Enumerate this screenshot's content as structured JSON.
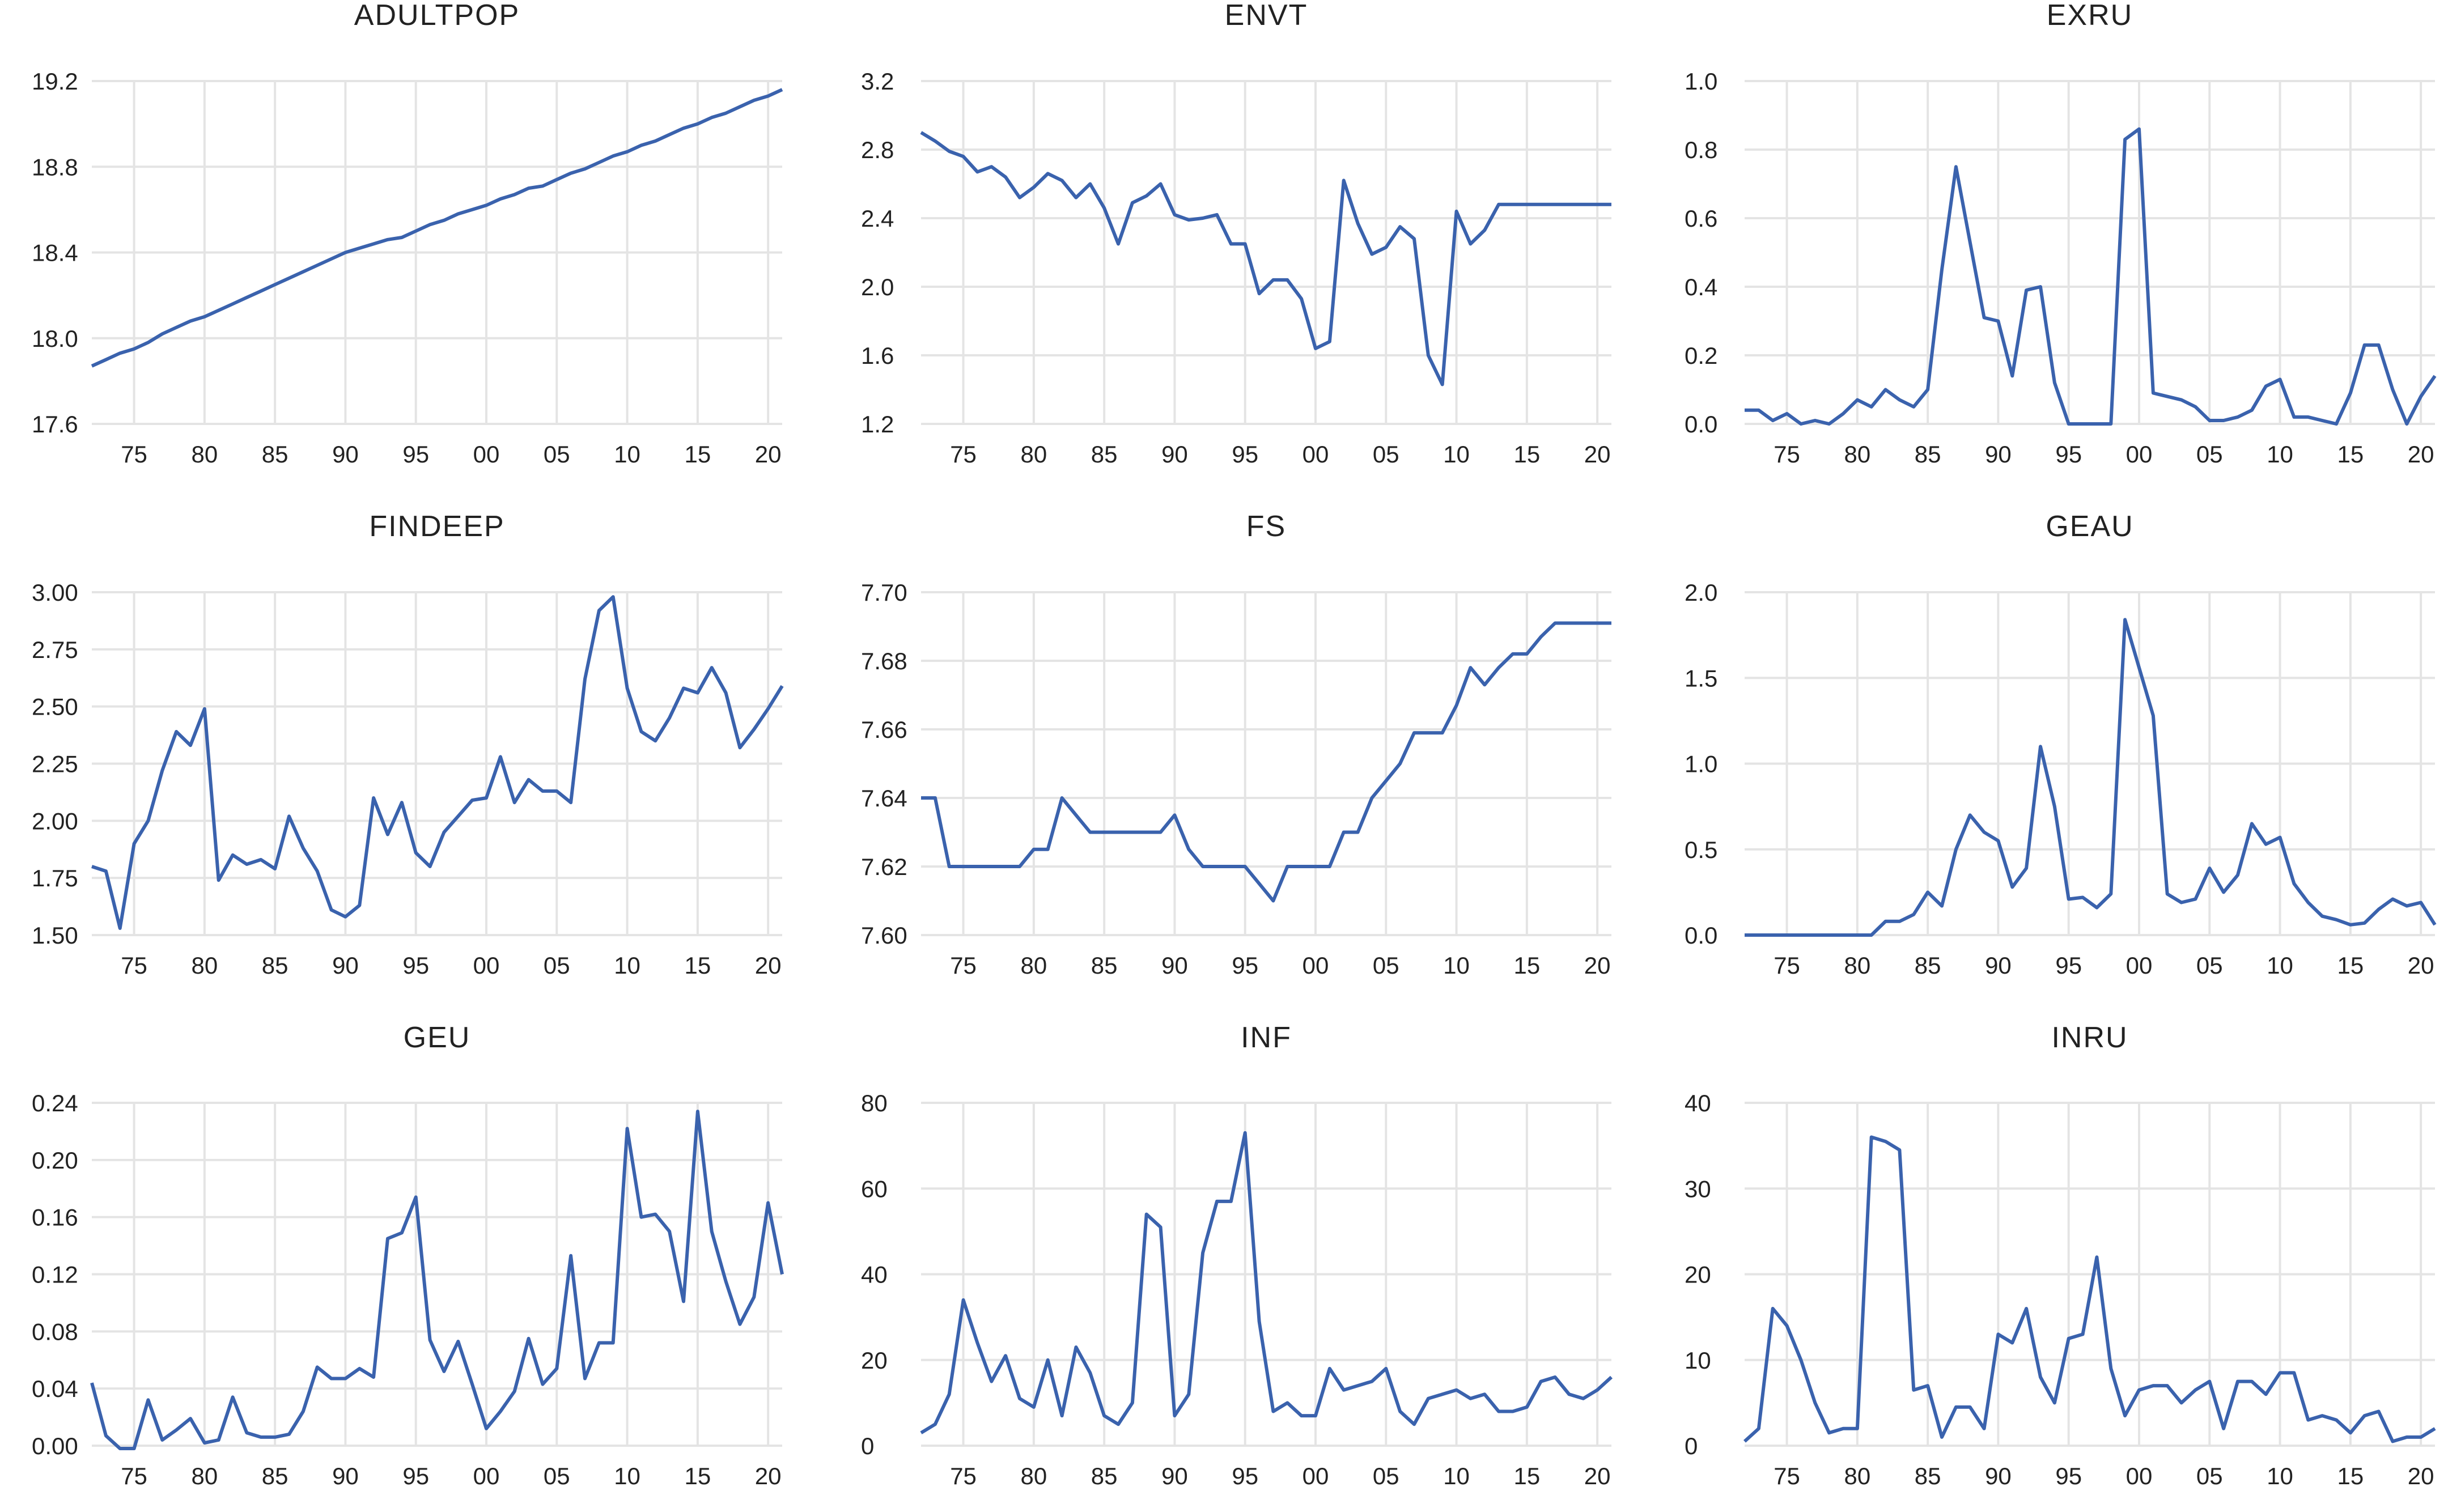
{
  "colors": {
    "line": "#3a62ad",
    "grid": "#e4e4e4",
    "text": "#222222"
  },
  "chart_data": [
    {
      "type": "line",
      "title": "ADULTPOP",
      "ylim": [
        17.6,
        19.2
      ],
      "yticks": [
        "17.6",
        "18.0",
        "18.4",
        "18.8",
        "19.2"
      ],
      "xticks": [
        "75",
        "80",
        "85",
        "90",
        "95",
        "00",
        "05",
        "10",
        "15",
        "20"
      ],
      "x": [
        1972,
        1973,
        1974,
        1975,
        1976,
        1977,
        1978,
        1979,
        1980,
        1981,
        1982,
        1983,
        1984,
        1985,
        1986,
        1987,
        1988,
        1989,
        1990,
        1991,
        1992,
        1993,
        1994,
        1995,
        1996,
        1997,
        1998,
        1999,
        2000,
        2001,
        2002,
        2003,
        2004,
        2005,
        2006,
        2007,
        2008,
        2009,
        2010,
        2011,
        2012,
        2013,
        2014,
        2015,
        2016,
        2017,
        2018,
        2019,
        2020,
        2021
      ],
      "values": [
        17.87,
        17.9,
        17.93,
        17.95,
        17.98,
        18.02,
        18.05,
        18.08,
        18.1,
        18.13,
        18.16,
        18.19,
        18.22,
        18.25,
        18.28,
        18.31,
        18.34,
        18.37,
        18.4,
        18.42,
        18.44,
        18.46,
        18.47,
        18.5,
        18.53,
        18.55,
        18.58,
        18.6,
        18.62,
        18.65,
        18.67,
        18.7,
        18.71,
        18.74,
        18.77,
        18.79,
        18.82,
        18.85,
        18.87,
        18.9,
        18.92,
        18.95,
        18.98,
        19.0,
        19.03,
        19.05,
        19.08,
        19.11,
        19.13,
        19.16
      ]
    },
    {
      "type": "line",
      "title": "ENVT",
      "ylim": [
        1.2,
        3.2
      ],
      "yticks": [
        "1.2",
        "1.6",
        "2.0",
        "2.4",
        "2.8",
        "3.2"
      ],
      "xticks": [
        "75",
        "80",
        "85",
        "90",
        "95",
        "00",
        "05",
        "10",
        "15",
        "20"
      ],
      "x": [
        1972,
        1973,
        1974,
        1975,
        1976,
        1977,
        1978,
        1979,
        1980,
        1981,
        1982,
        1983,
        1984,
        1985,
        1986,
        1987,
        1988,
        1989,
        1990,
        1991,
        1992,
        1993,
        1994,
        1995,
        1996,
        1997,
        1998,
        1999,
        2000,
        2001,
        2002,
        2003,
        2004,
        2005,
        2006,
        2007,
        2008,
        2009,
        2010,
        2011,
        2012,
        2013,
        2014,
        2015,
        2016,
        2017,
        2018,
        2019,
        2020,
        2021
      ],
      "values": [
        2.9,
        2.85,
        2.79,
        2.76,
        2.67,
        2.7,
        2.64,
        2.52,
        2.58,
        2.66,
        2.62,
        2.52,
        2.6,
        2.46,
        2.25,
        2.49,
        2.53,
        2.6,
        2.42,
        2.39,
        2.4,
        2.42,
        2.25,
        2.25,
        1.96,
        2.04,
        2.04,
        1.93,
        1.64,
        1.68,
        2.62,
        2.37,
        2.19,
        2.23,
        2.35,
        2.28,
        1.6,
        1.43,
        2.44,
        2.25,
        2.33,
        2.48,
        2.48,
        2.48,
        2.48,
        2.48,
        2.48,
        2.48,
        2.48,
        2.48
      ]
    },
    {
      "type": "line",
      "title": "EXRU",
      "ylim": [
        0.0,
        1.0
      ],
      "yticks": [
        "0.0",
        "0.2",
        "0.4",
        "0.6",
        "0.8",
        "1.0"
      ],
      "xticks": [
        "75",
        "80",
        "85",
        "90",
        "95",
        "00",
        "05",
        "10",
        "15",
        "20"
      ],
      "x": [
        1972,
        1973,
        1974,
        1975,
        1976,
        1977,
        1978,
        1979,
        1980,
        1981,
        1982,
        1983,
        1984,
        1985,
        1986,
        1987,
        1988,
        1989,
        1990,
        1991,
        1992,
        1993,
        1994,
        1995,
        1996,
        1997,
        1998,
        1999,
        2000,
        2001,
        2002,
        2003,
        2004,
        2005,
        2006,
        2007,
        2008,
        2009,
        2010,
        2011,
        2012,
        2013,
        2014,
        2015,
        2016,
        2017,
        2018,
        2019,
        2020,
        2021
      ],
      "values": [
        0.04,
        0.04,
        0.01,
        0.03,
        0.0,
        0.01,
        0.0,
        0.03,
        0.07,
        0.05,
        0.1,
        0.07,
        0.05,
        0.1,
        0.45,
        0.75,
        0.53,
        0.31,
        0.3,
        0.14,
        0.39,
        0.4,
        0.12,
        0.0,
        0.0,
        0.0,
        0.0,
        0.83,
        0.86,
        0.09,
        0.08,
        0.07,
        0.05,
        0.01,
        0.01,
        0.02,
        0.04,
        0.11,
        0.13,
        0.02,
        0.02,
        0.01,
        0.0,
        0.09,
        0.23,
        0.23,
        0.1,
        0.0,
        0.08,
        0.14
      ]
    },
    {
      "type": "line",
      "title": "FINDEEP",
      "ylim": [
        1.5,
        3.0
      ],
      "yticks": [
        "1.50",
        "1.75",
        "2.00",
        "2.25",
        "2.50",
        "2.75",
        "3.00"
      ],
      "xticks": [
        "75",
        "80",
        "85",
        "90",
        "95",
        "00",
        "05",
        "10",
        "15",
        "20"
      ],
      "x": [
        1972,
        1973,
        1974,
        1975,
        1976,
        1977,
        1978,
        1979,
        1980,
        1981,
        1982,
        1983,
        1984,
        1985,
        1986,
        1987,
        1988,
        1989,
        1990,
        1991,
        1992,
        1993,
        1994,
        1995,
        1996,
        1997,
        1998,
        1999,
        2000,
        2001,
        2002,
        2003,
        2004,
        2005,
        2006,
        2007,
        2008,
        2009,
        2010,
        2011,
        2012,
        2013,
        2014,
        2015,
        2016,
        2017,
        2018,
        2019,
        2020,
        2021
      ],
      "values": [
        1.8,
        1.78,
        1.53,
        1.9,
        2.0,
        2.22,
        2.39,
        2.33,
        2.49,
        1.74,
        1.85,
        1.81,
        1.83,
        1.79,
        2.02,
        1.88,
        1.78,
        1.61,
        1.58,
        1.63,
        2.1,
        1.94,
        2.08,
        1.86,
        1.8,
        1.95,
        2.02,
        2.09,
        2.1,
        2.28,
        2.08,
        2.18,
        2.13,
        2.13,
        2.08,
        2.62,
        2.92,
        2.98,
        2.58,
        2.39,
        2.35,
        2.45,
        2.58,
        2.56,
        2.67,
        2.56,
        2.32,
        2.4,
        2.49,
        2.59
      ]
    },
    {
      "type": "line",
      "title": "FS",
      "ylim": [
        7.6,
        7.7
      ],
      "yticks": [
        "7.60",
        "7.62",
        "7.64",
        "7.66",
        "7.68",
        "7.70"
      ],
      "xticks": [
        "75",
        "80",
        "85",
        "90",
        "95",
        "00",
        "05",
        "10",
        "15",
        "20"
      ],
      "x": [
        1972,
        1973,
        1974,
        1975,
        1976,
        1977,
        1978,
        1979,
        1980,
        1981,
        1982,
        1983,
        1984,
        1985,
        1986,
        1987,
        1988,
        1989,
        1990,
        1991,
        1992,
        1993,
        1994,
        1995,
        1996,
        1997,
        1998,
        1999,
        2000,
        2001,
        2002,
        2003,
        2004,
        2005,
        2006,
        2007,
        2008,
        2009,
        2010,
        2011,
        2012,
        2013,
        2014,
        2015,
        2016,
        2017,
        2018,
        2019,
        2020,
        2021
      ],
      "values": [
        7.64,
        7.64,
        7.62,
        7.62,
        7.62,
        7.62,
        7.62,
        7.62,
        7.625,
        7.625,
        7.64,
        7.635,
        7.63,
        7.63,
        7.63,
        7.63,
        7.63,
        7.63,
        7.635,
        7.625,
        7.62,
        7.62,
        7.62,
        7.62,
        7.615,
        7.61,
        7.62,
        7.62,
        7.62,
        7.62,
        7.63,
        7.63,
        7.64,
        7.645,
        7.65,
        7.659,
        7.659,
        7.659,
        7.667,
        7.678,
        7.673,
        7.678,
        7.682,
        7.682,
        7.687,
        7.691,
        7.691,
        7.691,
        7.691,
        7.691
      ]
    },
    {
      "type": "line",
      "title": "GEAU",
      "ylim": [
        0.0,
        2.0
      ],
      "yticks": [
        "0.0",
        "0.5",
        "1.0",
        "1.5",
        "2.0"
      ],
      "xticks": [
        "75",
        "80",
        "85",
        "90",
        "95",
        "00",
        "05",
        "10",
        "15",
        "20"
      ],
      "x": [
        1972,
        1973,
        1974,
        1975,
        1976,
        1977,
        1978,
        1979,
        1980,
        1981,
        1982,
        1983,
        1984,
        1985,
        1986,
        1987,
        1988,
        1989,
        1990,
        1991,
        1992,
        1993,
        1994,
        1995,
        1996,
        1997,
        1998,
        1999,
        2000,
        2001,
        2002,
        2003,
        2004,
        2005,
        2006,
        2007,
        2008,
        2009,
        2010,
        2011,
        2012,
        2013,
        2014,
        2015,
        2016,
        2017,
        2018,
        2019,
        2020,
        2021
      ],
      "values": [
        0.0,
        0.0,
        0.0,
        0.0,
        0.0,
        0.0,
        0.0,
        0.0,
        0.0,
        0.0,
        0.08,
        0.08,
        0.12,
        0.25,
        0.17,
        0.5,
        0.7,
        0.6,
        0.55,
        0.28,
        0.39,
        1.1,
        0.75,
        0.21,
        0.22,
        0.16,
        0.24,
        1.84,
        1.56,
        1.28,
        0.24,
        0.19,
        0.21,
        0.39,
        0.25,
        0.35,
        0.65,
        0.53,
        0.57,
        0.3,
        0.19,
        0.11,
        0.09,
        0.06,
        0.07,
        0.15,
        0.21,
        0.17,
        0.19,
        0.06
      ]
    },
    {
      "type": "line",
      "title": "GEU",
      "ylim": [
        0.0,
        0.24
      ],
      "yticks": [
        "0.00",
        "0.04",
        "0.08",
        "0.12",
        "0.16",
        "0.20",
        "0.24"
      ],
      "xticks": [
        "75",
        "80",
        "85",
        "90",
        "95",
        "00",
        "05",
        "10",
        "15",
        "20"
      ],
      "x": [
        1972,
        1973,
        1974,
        1975,
        1976,
        1977,
        1978,
        1979,
        1980,
        1981,
        1982,
        1983,
        1984,
        1985,
        1986,
        1987,
        1988,
        1989,
        1990,
        1991,
        1992,
        1993,
        1994,
        1995,
        1996,
        1997,
        1998,
        1999,
        2000,
        2001,
        2002,
        2003,
        2004,
        2005,
        2006,
        2007,
        2008,
        2009,
        2010,
        2011,
        2012,
        2013,
        2014,
        2015,
        2016,
        2017,
        2018,
        2019,
        2020,
        2021
      ],
      "values": [
        0.044,
        0.007,
        -0.002,
        -0.002,
        0.032,
        0.004,
        0.011,
        0.019,
        0.002,
        0.004,
        0.034,
        0.009,
        0.006,
        0.006,
        0.008,
        0.024,
        0.055,
        0.047,
        0.047,
        0.054,
        0.048,
        0.145,
        0.149,
        0.174,
        0.074,
        0.052,
        0.073,
        0.043,
        0.012,
        0.024,
        0.038,
        0.075,
        0.043,
        0.054,
        0.133,
        0.047,
        0.072,
        0.072,
        0.222,
        0.16,
        0.162,
        0.15,
        0.101,
        0.234,
        0.15,
        0.115,
        0.085,
        0.104,
        0.17,
        0.12
      ]
    },
    {
      "type": "line",
      "title": "INF",
      "ylim": [
        0,
        80
      ],
      "yticks": [
        "0",
        "20",
        "40",
        "60",
        "80"
      ],
      "xticks": [
        "75",
        "80",
        "85",
        "90",
        "95",
        "00",
        "05",
        "10",
        "15",
        "20"
      ],
      "x": [
        1972,
        1973,
        1974,
        1975,
        1976,
        1977,
        1978,
        1979,
        1980,
        1981,
        1982,
        1983,
        1984,
        1985,
        1986,
        1987,
        1988,
        1989,
        1990,
        1991,
        1992,
        1993,
        1994,
        1995,
        1996,
        1997,
        1998,
        1999,
        2000,
        2001,
        2002,
        2003,
        2004,
        2005,
        2006,
        2007,
        2008,
        2009,
        2010,
        2011,
        2012,
        2013,
        2014,
        2015,
        2016,
        2017,
        2018,
        2019,
        2020,
        2021
      ],
      "values": [
        3,
        5,
        12,
        34,
        24,
        15,
        21,
        11,
        9,
        20,
        7,
        23,
        17,
        7,
        5,
        10,
        54,
        51,
        7,
        12,
        45,
        57,
        57,
        73,
        29,
        8,
        10,
        7,
        7,
        18,
        13,
        14,
        15,
        18,
        8,
        5,
        11,
        12,
        13,
        11,
        12,
        8,
        8,
        9,
        15,
        16,
        12,
        11,
        13,
        16
      ]
    },
    {
      "type": "line",
      "title": "INRU",
      "ylim": [
        0,
        40
      ],
      "yticks": [
        "0",
        "10",
        "20",
        "30",
        "40"
      ],
      "xticks": [
        "75",
        "80",
        "85",
        "90",
        "95",
        "00",
        "05",
        "10",
        "15",
        "20"
      ],
      "x": [
        1972,
        1973,
        1974,
        1975,
        1976,
        1977,
        1978,
        1979,
        1980,
        1981,
        1982,
        1983,
        1984,
        1985,
        1986,
        1987,
        1988,
        1989,
        1990,
        1991,
        1992,
        1993,
        1994,
        1995,
        1996,
        1997,
        1998,
        1999,
        2000,
        2001,
        2002,
        2003,
        2004,
        2005,
        2006,
        2007,
        2008,
        2009,
        2010,
        2011,
        2012,
        2013,
        2014,
        2015,
        2016,
        2017,
        2018,
        2019,
        2020,
        2021
      ],
      "values": [
        0.5,
        2,
        16,
        14,
        10,
        5,
        1.5,
        2,
        2,
        36,
        35.5,
        34.5,
        6.5,
        7,
        1,
        4.5,
        4.5,
        2,
        13,
        12,
        16,
        8,
        5,
        12.5,
        13,
        22,
        9,
        3.5,
        6.5,
        7,
        7,
        5,
        6.5,
        7.5,
        2,
        7.5,
        7.5,
        6,
        8.5,
        8.5,
        3,
        3.5,
        3,
        1.5,
        3.5,
        4,
        0.5,
        1,
        1,
        2
      ]
    }
  ]
}
